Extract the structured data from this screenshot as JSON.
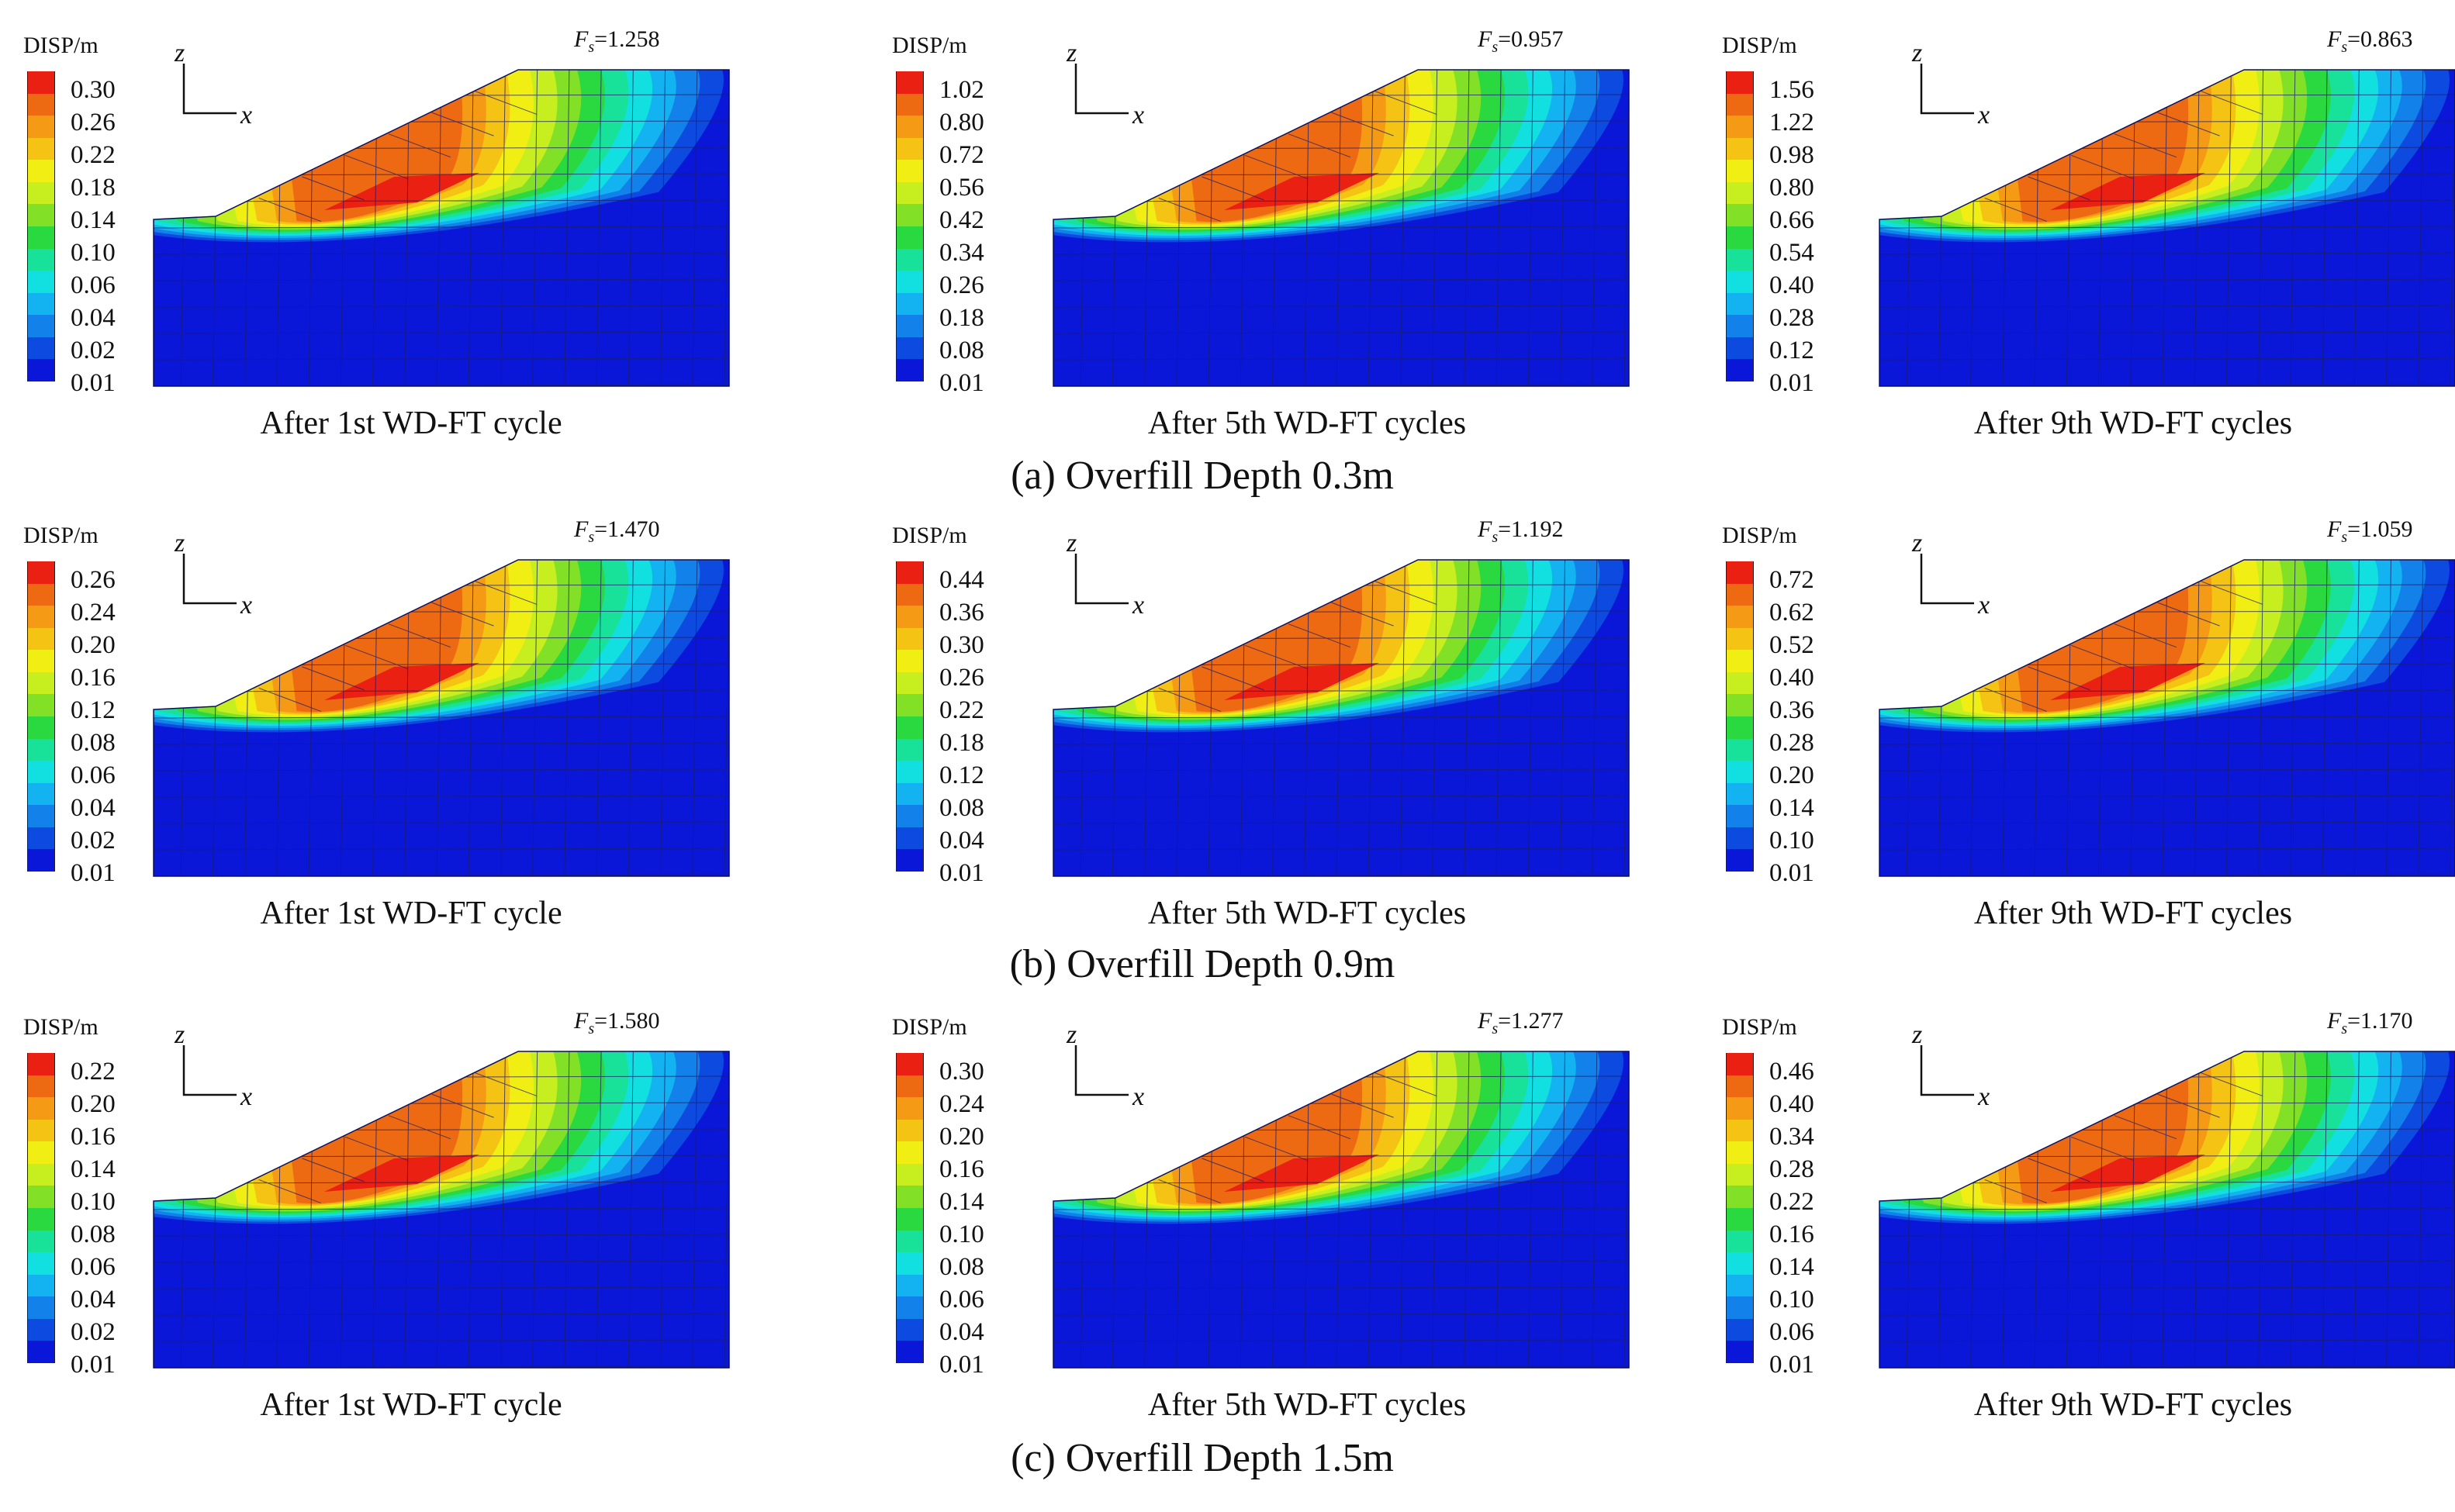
{
  "colors": {
    "scale": [
      "#0a17d8",
      "#0c4ae0",
      "#1282ea",
      "#12b3f0",
      "#12e0e0",
      "#18e29a",
      "#2ad83f",
      "#82e027",
      "#c7ee1f",
      "#f1ee14",
      "#f4c314",
      "#f59a14",
      "#ee6a12",
      "#e92012"
    ],
    "mesh": "#1a1e6b"
  },
  "legend_unit": "DISP/m",
  "axes": {
    "z": "z",
    "x": "x"
  },
  "rows": [
    {
      "caption": "(a) Overfill Depth 0.3m",
      "panels": [
        {
          "fs_symbol": "F",
          "fs_sub": "s",
          "fs_value": "=1.258",
          "caption": "After 1st  WD-FT cycle",
          "ticks": [
            "0.30",
            "0.26",
            "0.22",
            "0.18",
            "0.14",
            "0.10",
            "0.06",
            "0.04",
            "0.02",
            "0.01"
          ]
        },
        {
          "fs_symbol": "F",
          "fs_sub": "s",
          "fs_value": "=0.957",
          "caption": "After 5th  WD-FT cycles",
          "ticks": [
            "1.02",
            "0.80",
            "0.72",
            "0.56",
            "0.42",
            "0.34",
            "0.26",
            "0.18",
            "0.08",
            "0.01"
          ]
        },
        {
          "fs_symbol": "F",
          "fs_sub": "s",
          "fs_value": "=0.863",
          "caption": "After 9th  WD-FT cycles",
          "ticks": [
            "1.56",
            "1.22",
            "0.98",
            "0.80",
            "0.66",
            "0.54",
            "0.40",
            "0.28",
            "0.12",
            "0.01"
          ]
        }
      ]
    },
    {
      "caption": "(b) Overfill Depth 0.9m",
      "panels": [
        {
          "fs_symbol": "F",
          "fs_sub": "s",
          "fs_value": "=1.470",
          "caption": "After 1st  WD-FT cycle",
          "ticks": [
            "0.26",
            "0.24",
            "0.20",
            "0.16",
            "0.12",
            "0.08",
            "0.06",
            "0.04",
            "0.02",
            "0.01"
          ]
        },
        {
          "fs_symbol": "F",
          "fs_sub": "s",
          "fs_value": "=1.192",
          "caption": "After 5th  WD-FT cycles",
          "ticks": [
            "0.44",
            "0.36",
            "0.30",
            "0.26",
            "0.22",
            "0.18",
            "0.12",
            "0.08",
            "0.04",
            "0.01"
          ]
        },
        {
          "fs_symbol": "F",
          "fs_sub": "s",
          "fs_value": "=1.059",
          "caption": "After 9th  WD-FT cycles",
          "ticks": [
            "0.72",
            "0.62",
            "0.52",
            "0.40",
            "0.36",
            "0.28",
            "0.20",
            "0.14",
            "0.10",
            "0.01"
          ]
        }
      ]
    },
    {
      "caption": "(c) Overfill Depth 1.5m",
      "panels": [
        {
          "fs_symbol": "F",
          "fs_sub": "s",
          "fs_value": "=1.580",
          "caption": "After 1st  WD-FT cycle",
          "ticks": [
            "0.22",
            "0.20",
            "0.16",
            "0.14",
            "0.10",
            "0.08",
            "0.06",
            "0.04",
            "0.02",
            "0.01"
          ]
        },
        {
          "fs_symbol": "F",
          "fs_sub": "s",
          "fs_value": "=1.277",
          "caption": "After 5th  WD-FT cycles",
          "ticks": [
            "0.30",
            "0.24",
            "0.20",
            "0.16",
            "0.14",
            "0.10",
            "0.08",
            "0.06",
            "0.04",
            "0.01"
          ]
        },
        {
          "fs_symbol": "F",
          "fs_sub": "s",
          "fs_value": "=1.170",
          "caption": "After 9th  WD-FT cycles",
          "ticks": [
            "0.46",
            "0.40",
            "0.34",
            "0.28",
            "0.22",
            "0.16",
            "0.14",
            "0.10",
            "0.06",
            "0.01"
          ]
        }
      ]
    }
  ]
}
